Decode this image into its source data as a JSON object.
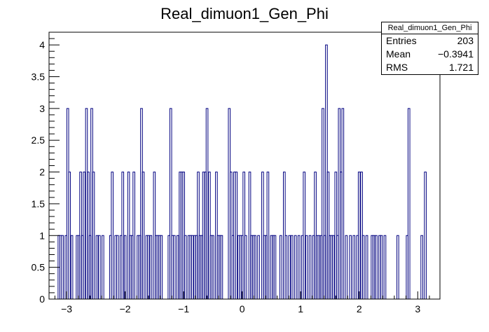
{
  "chart_data": {
    "type": "bar",
    "histogram_style": "step",
    "title": "Real_dimuon1_Gen_Phi",
    "xlabel": "",
    "ylabel": "",
    "xlim": [
      -3.3,
      3.38
    ],
    "ylim": [
      0,
      4.2
    ],
    "grid": false,
    "legend": "top-right stats box",
    "line_color": "#000080",
    "x_ticks": [
      "−3",
      "−2",
      "−1",
      "0",
      "1",
      "2",
      "3"
    ],
    "x_tick_values": [
      -3,
      -2,
      -1,
      0,
      1,
      2,
      3
    ],
    "y_ticks": [
      "0",
      "0.5",
      "1",
      "1.5",
      "2",
      "2.5",
      "3",
      "3.5",
      "4"
    ],
    "y_tick_values": [
      0,
      0.5,
      1,
      1.5,
      2,
      2.5,
      3,
      3.5,
      4
    ],
    "bin_width": 0.0314,
    "bins": [
      {
        "x": -3.13,
        "y": 1
      },
      {
        "x": -3.1,
        "y": 1
      },
      {
        "x": -3.07,
        "y": 1
      },
      {
        "x": -3.01,
        "y": 1
      },
      {
        "x": -2.98,
        "y": 3
      },
      {
        "x": -2.95,
        "y": 2
      },
      {
        "x": -2.91,
        "y": 1
      },
      {
        "x": -2.82,
        "y": 1
      },
      {
        "x": -2.79,
        "y": 1
      },
      {
        "x": -2.76,
        "y": 2
      },
      {
        "x": -2.73,
        "y": 1
      },
      {
        "x": -2.7,
        "y": 2
      },
      {
        "x": -2.66,
        "y": 3
      },
      {
        "x": -2.63,
        "y": 2
      },
      {
        "x": -2.6,
        "y": 1
      },
      {
        "x": -2.57,
        "y": 3
      },
      {
        "x": -2.54,
        "y": 2
      },
      {
        "x": -2.48,
        "y": 1
      },
      {
        "x": -2.44,
        "y": 1
      },
      {
        "x": -2.38,
        "y": 1
      },
      {
        "x": -2.25,
        "y": 1
      },
      {
        "x": -2.22,
        "y": 2
      },
      {
        "x": -2.16,
        "y": 1
      },
      {
        "x": -2.13,
        "y": 1
      },
      {
        "x": -2.07,
        "y": 1
      },
      {
        "x": -2.04,
        "y": 2
      },
      {
        "x": -2.0,
        "y": 1
      },
      {
        "x": -1.94,
        "y": 2
      },
      {
        "x": -1.91,
        "y": 1
      },
      {
        "x": -1.88,
        "y": 1
      },
      {
        "x": -1.85,
        "y": 2
      },
      {
        "x": -1.78,
        "y": 1
      },
      {
        "x": -1.75,
        "y": 1
      },
      {
        "x": -1.72,
        "y": 3
      },
      {
        "x": -1.69,
        "y": 2
      },
      {
        "x": -1.63,
        "y": 1
      },
      {
        "x": -1.6,
        "y": 1
      },
      {
        "x": -1.56,
        "y": 1
      },
      {
        "x": -1.5,
        "y": 2
      },
      {
        "x": -1.47,
        "y": 1
      },
      {
        "x": -1.44,
        "y": 1
      },
      {
        "x": -1.41,
        "y": 1
      },
      {
        "x": -1.38,
        "y": 1
      },
      {
        "x": -1.25,
        "y": 1
      },
      {
        "x": -1.22,
        "y": 3
      },
      {
        "x": -1.19,
        "y": 1
      },
      {
        "x": -1.16,
        "y": 1
      },
      {
        "x": -1.1,
        "y": 1
      },
      {
        "x": -1.06,
        "y": 2
      },
      {
        "x": -1.03,
        "y": 2
      },
      {
        "x": -1.0,
        "y": 2
      },
      {
        "x": -0.97,
        "y": 1
      },
      {
        "x": -0.91,
        "y": 1
      },
      {
        "x": -0.88,
        "y": 1
      },
      {
        "x": -0.85,
        "y": 1
      },
      {
        "x": -0.81,
        "y": 1
      },
      {
        "x": -0.78,
        "y": 1
      },
      {
        "x": -0.75,
        "y": 2
      },
      {
        "x": -0.72,
        "y": 1
      },
      {
        "x": -0.69,
        "y": 1
      },
      {
        "x": -0.66,
        "y": 2
      },
      {
        "x": -0.63,
        "y": 2
      },
      {
        "x": -0.6,
        "y": 3
      },
      {
        "x": -0.56,
        "y": 2
      },
      {
        "x": -0.53,
        "y": 1
      },
      {
        "x": -0.5,
        "y": 1
      },
      {
        "x": -0.44,
        "y": 2
      },
      {
        "x": -0.41,
        "y": 1
      },
      {
        "x": -0.38,
        "y": 1
      },
      {
        "x": -0.35,
        "y": 1
      },
      {
        "x": -0.22,
        "y": 3
      },
      {
        "x": -0.19,
        "y": 2
      },
      {
        "x": -0.16,
        "y": 1
      },
      {
        "x": -0.13,
        "y": 2
      },
      {
        "x": -0.1,
        "y": 2
      },
      {
        "x": -0.06,
        "y": 1
      },
      {
        "x": -0.03,
        "y": 1
      },
      {
        "x": 0.0,
        "y": 1
      },
      {
        "x": 0.03,
        "y": 2
      },
      {
        "x": 0.06,
        "y": 1
      },
      {
        "x": 0.13,
        "y": 2
      },
      {
        "x": 0.16,
        "y": 1
      },
      {
        "x": 0.19,
        "y": 1
      },
      {
        "x": 0.22,
        "y": 1
      },
      {
        "x": 0.28,
        "y": 1
      },
      {
        "x": 0.35,
        "y": 2
      },
      {
        "x": 0.38,
        "y": 1
      },
      {
        "x": 0.41,
        "y": 1
      },
      {
        "x": 0.44,
        "y": 2
      },
      {
        "x": 0.5,
        "y": 1
      },
      {
        "x": 0.53,
        "y": 1
      },
      {
        "x": 0.56,
        "y": 1
      },
      {
        "x": 0.66,
        "y": 1
      },
      {
        "x": 0.72,
        "y": 2
      },
      {
        "x": 0.75,
        "y": 1
      },
      {
        "x": 0.81,
        "y": 1
      },
      {
        "x": 0.85,
        "y": 1
      },
      {
        "x": 0.91,
        "y": 1
      },
      {
        "x": 0.97,
        "y": 1
      },
      {
        "x": 1.03,
        "y": 1
      },
      {
        "x": 1.06,
        "y": 2
      },
      {
        "x": 1.1,
        "y": 1
      },
      {
        "x": 1.16,
        "y": 1
      },
      {
        "x": 1.22,
        "y": 1
      },
      {
        "x": 1.25,
        "y": 2
      },
      {
        "x": 1.28,
        "y": 1
      },
      {
        "x": 1.31,
        "y": 1
      },
      {
        "x": 1.35,
        "y": 1
      },
      {
        "x": 1.38,
        "y": 3
      },
      {
        "x": 1.41,
        "y": 1
      },
      {
        "x": 1.44,
        "y": 4
      },
      {
        "x": 1.47,
        "y": 2
      },
      {
        "x": 1.5,
        "y": 1
      },
      {
        "x": 1.53,
        "y": 1
      },
      {
        "x": 1.56,
        "y": 1
      },
      {
        "x": 1.6,
        "y": 2
      },
      {
        "x": 1.63,
        "y": 1
      },
      {
        "x": 1.66,
        "y": 3
      },
      {
        "x": 1.69,
        "y": 2
      },
      {
        "x": 1.72,
        "y": 3
      },
      {
        "x": 1.78,
        "y": 1
      },
      {
        "x": 1.85,
        "y": 1
      },
      {
        "x": 1.91,
        "y": 1
      },
      {
        "x": 1.97,
        "y": 1
      },
      {
        "x": 2.0,
        "y": 2
      },
      {
        "x": 2.04,
        "y": 2
      },
      {
        "x": 2.07,
        "y": 1
      },
      {
        "x": 2.13,
        "y": 1
      },
      {
        "x": 2.22,
        "y": 1
      },
      {
        "x": 2.25,
        "y": 1
      },
      {
        "x": 2.29,
        "y": 1
      },
      {
        "x": 2.35,
        "y": 1
      },
      {
        "x": 2.38,
        "y": 1
      },
      {
        "x": 2.44,
        "y": 1
      },
      {
        "x": 2.66,
        "y": 1
      },
      {
        "x": 2.82,
        "y": 1
      },
      {
        "x": 2.85,
        "y": 3
      },
      {
        "x": 3.07,
        "y": 1
      },
      {
        "x": 3.13,
        "y": 2
      }
    ]
  },
  "stats_box": {
    "title": "Real_dimuon1_Gen_Phi",
    "rows": [
      {
        "label": "Entries",
        "value": "203"
      },
      {
        "label": "Mean",
        "value": "−0.3941"
      },
      {
        "label": "RMS",
        "value": "1.721"
      }
    ]
  }
}
